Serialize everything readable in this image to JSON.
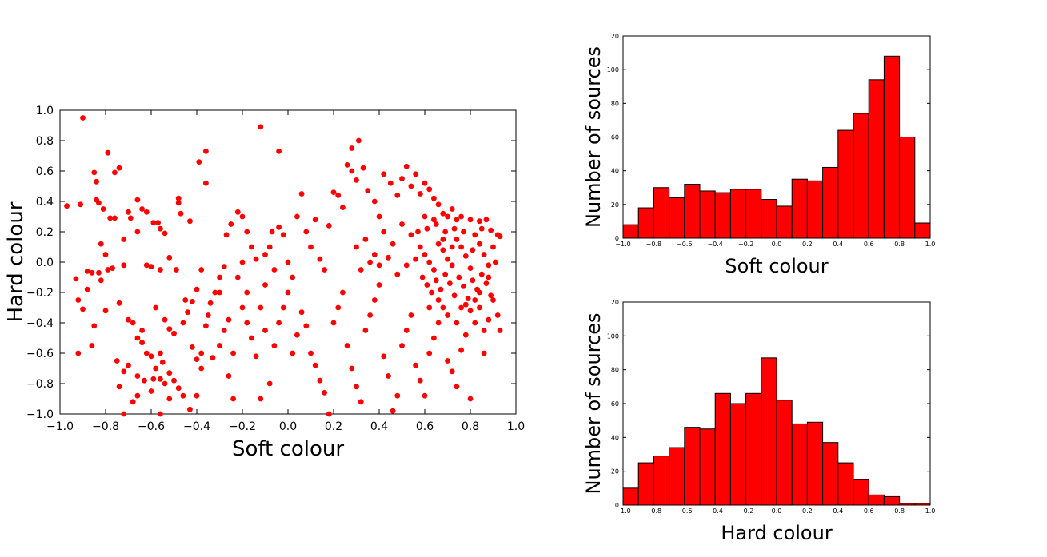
{
  "colors": {
    "marker": "#ff0000",
    "bar_fill": "#ff0000",
    "bar_edge": "#000000",
    "axis": "#000000",
    "background": "#ffffff"
  },
  "chart_data": [
    {
      "type": "scatter",
      "xlabel": "Soft colour",
      "ylabel": "Hard colour",
      "xlim": [
        -1.0,
        1.0
      ],
      "ylim": [
        -1.0,
        1.0
      ],
      "x_ticks": [
        "−1.0",
        "−0.8",
        "−0.6",
        "−0.4",
        "−0.2",
        "0.0",
        "0.2",
        "0.4",
        "0.6",
        "0.8",
        "1.0"
      ],
      "y_ticks": [
        "−1.0",
        "−0.8",
        "−0.6",
        "−0.4",
        "−0.2",
        "0.0",
        "0.2",
        "0.4",
        "0.6",
        "0.8",
        "1.0"
      ],
      "grid": false,
      "points": [
        [
          -0.9,
          0.95
        ],
        [
          -0.12,
          0.89
        ],
        [
          -0.79,
          0.72
        ],
        [
          -0.36,
          0.73
        ],
        [
          -0.04,
          0.73
        ],
        [
          0.31,
          0.8
        ],
        [
          0.28,
          0.75
        ],
        [
          -0.76,
          0.59
        ],
        [
          -0.74,
          0.62
        ],
        [
          -0.85,
          0.59
        ],
        [
          -0.84,
          0.53
        ],
        [
          -0.39,
          0.66
        ],
        [
          -0.36,
          0.52
        ],
        [
          -0.97,
          0.37
        ],
        [
          -0.91,
          0.38
        ],
        [
          -0.84,
          0.41
        ],
        [
          -0.83,
          0.39
        ],
        [
          -0.81,
          0.35
        ],
        [
          -0.78,
          0.29
        ],
        [
          -0.76,
          0.29
        ],
        [
          -0.7,
          0.33
        ],
        [
          -0.69,
          0.29
        ],
        [
          -0.66,
          0.41
        ],
        [
          -0.64,
          0.35
        ],
        [
          -0.62,
          0.33
        ],
        [
          -0.59,
          0.26
        ],
        [
          -0.57,
          0.26
        ],
        [
          -0.48,
          0.42
        ],
        [
          -0.48,
          0.39
        ],
        [
          -0.47,
          0.32
        ],
        [
          -0.43,
          0.27
        ],
        [
          -0.72,
          0.15
        ],
        [
          -0.66,
          0.2
        ],
        [
          -0.56,
          0.22
        ],
        [
          -0.54,
          0.19
        ],
        [
          -0.82,
          0.12
        ],
        [
          -0.8,
          0.05
        ],
        [
          -0.72,
          -0.02
        ],
        [
          -0.77,
          -0.04
        ],
        [
          -0.79,
          -0.05
        ],
        [
          -0.83,
          -0.07
        ],
        [
          -0.86,
          -0.07
        ],
        [
          -0.88,
          -0.06
        ],
        [
          -0.93,
          -0.11
        ],
        [
          -0.82,
          -0.12
        ],
        [
          -0.62,
          -0.02
        ],
        [
          -0.6,
          -0.03
        ],
        [
          -0.56,
          -0.05
        ],
        [
          -0.52,
          0.03
        ],
        [
          -0.49,
          -0.05
        ],
        [
          -0.92,
          -0.25
        ],
        [
          -0.9,
          -0.31
        ],
        [
          -0.86,
          -0.55
        ],
        [
          -0.92,
          -0.6
        ],
        [
          -0.74,
          -0.27
        ],
        [
          -0.7,
          -0.38
        ],
        [
          -0.68,
          -0.4
        ],
        [
          -0.66,
          -0.5
        ],
        [
          -0.64,
          -0.53
        ],
        [
          -0.62,
          -0.6
        ],
        [
          -0.6,
          -0.62
        ],
        [
          -0.58,
          -0.7
        ],
        [
          -0.54,
          -0.38
        ],
        [
          -0.52,
          -0.44
        ],
        [
          -0.5,
          -0.47
        ],
        [
          -0.56,
          -0.6
        ],
        [
          -0.55,
          -0.66
        ],
        [
          -0.52,
          -0.73
        ],
        [
          -0.5,
          -0.78
        ],
        [
          -0.48,
          -0.83
        ],
        [
          -0.46,
          -0.88
        ],
        [
          -0.75,
          -0.65
        ],
        [
          -0.72,
          -0.72
        ],
        [
          -0.66,
          -0.75
        ],
        [
          -0.63,
          -0.78
        ],
        [
          -0.59,
          -0.77
        ],
        [
          -0.56,
          -0.77
        ],
        [
          -0.54,
          -0.8
        ],
        [
          -0.52,
          -0.9
        ],
        [
          -0.68,
          -0.92
        ],
        [
          -0.72,
          -1.0
        ],
        [
          -0.56,
          -1.0
        ],
        [
          -0.43,
          -0.97
        ],
        [
          -0.38,
          -0.6
        ],
        [
          -0.36,
          -0.42
        ],
        [
          -0.34,
          -0.27
        ],
        [
          -0.32,
          -0.2
        ],
        [
          -0.3,
          -0.1
        ],
        [
          -0.28,
          -0.03
        ],
        [
          -0.27,
          0.18
        ],
        [
          -0.25,
          0.25
        ],
        [
          -0.22,
          0.33
        ],
        [
          -0.2,
          0.3
        ],
        [
          -0.18,
          0.2
        ],
        [
          -0.16,
          0.1
        ],
        [
          -0.14,
          0.02
        ],
        [
          -0.1,
          0.05
        ],
        [
          -0.07,
          0.2
        ],
        [
          -0.04,
          0.23
        ],
        [
          -0.02,
          0.18
        ],
        [
          -0.38,
          -0.05
        ],
        [
          -0.4,
          -0.18
        ],
        [
          -0.42,
          -0.26
        ],
        [
          -0.44,
          -0.33
        ],
        [
          -0.46,
          -0.4
        ],
        [
          -0.42,
          -0.56
        ],
        [
          -0.4,
          -0.64
        ],
        [
          -0.38,
          -0.7
        ],
        [
          -0.4,
          -0.88
        ],
        [
          -0.33,
          -0.63
        ],
        [
          -0.3,
          -0.55
        ],
        [
          -0.28,
          -0.45
        ],
        [
          -0.26,
          -0.38
        ],
        [
          -0.24,
          -0.6
        ],
        [
          -0.26,
          -0.75
        ],
        [
          -0.24,
          -0.9
        ],
        [
          -0.2,
          -0.3
        ],
        [
          -0.18,
          -0.4
        ],
        [
          -0.16,
          -0.5
        ],
        [
          -0.14,
          -0.62
        ],
        [
          -0.12,
          -0.3
        ],
        [
          -0.1,
          -0.45
        ],
        [
          -0.08,
          -0.8
        ],
        [
          -0.12,
          -0.9
        ],
        [
          -0.06,
          -0.55
        ],
        [
          -0.04,
          -0.4
        ],
        [
          -0.02,
          -0.3
        ],
        [
          0.0,
          -0.2
        ],
        [
          0.02,
          -0.1
        ],
        [
          0.04,
          0.3
        ],
        [
          0.06,
          0.45
        ],
        [
          0.08,
          0.2
        ],
        [
          0.1,
          0.1
        ],
        [
          0.12,
          0.28
        ],
        [
          0.14,
          0.02
        ],
        [
          0.16,
          -0.05
        ],
        [
          0.18,
          0.24
        ],
        [
          0.2,
          0.46
        ],
        [
          0.22,
          0.44
        ],
        [
          0.24,
          0.36
        ],
        [
          0.26,
          0.64
        ],
        [
          0.28,
          0.6
        ],
        [
          0.3,
          0.54
        ],
        [
          0.33,
          0.62
        ],
        [
          0.35,
          0.47
        ],
        [
          0.38,
          0.4
        ],
        [
          0.4,
          0.3
        ],
        [
          0.42,
          0.58
        ],
        [
          0.45,
          0.52
        ],
        [
          0.48,
          0.44
        ],
        [
          0.5,
          0.55
        ],
        [
          0.52,
          0.63
        ],
        [
          0.54,
          0.5
        ],
        [
          0.56,
          0.58
        ],
        [
          0.58,
          0.45
        ],
        [
          0.6,
          0.52
        ],
        [
          0.62,
          0.48
        ],
        [
          0.64,
          0.42
        ],
        [
          0.66,
          0.38
        ],
        [
          0.68,
          0.32
        ],
        [
          0.7,
          0.3
        ],
        [
          0.72,
          0.35
        ],
        [
          0.74,
          0.28
        ],
        [
          0.76,
          0.3
        ],
        [
          0.8,
          0.28
        ],
        [
          0.84,
          0.27
        ],
        [
          0.87,
          0.28
        ],
        [
          0.89,
          0.21
        ],
        [
          0.92,
          0.18
        ],
        [
          0.93,
          0.17
        ],
        [
          0.02,
          -0.6
        ],
        [
          0.04,
          -0.48
        ],
        [
          0.06,
          -0.33
        ],
        [
          0.08,
          -0.42
        ],
        [
          0.1,
          -0.6
        ],
        [
          0.12,
          -0.68
        ],
        [
          0.14,
          -0.78
        ],
        [
          0.16,
          -0.86
        ],
        [
          0.18,
          -1.0
        ],
        [
          0.2,
          -0.4
        ],
        [
          0.22,
          -0.3
        ],
        [
          0.24,
          -0.2
        ],
        [
          0.26,
          -0.55
        ],
        [
          0.28,
          -0.7
        ],
        [
          0.3,
          -0.82
        ],
        [
          0.32,
          -0.92
        ],
        [
          0.34,
          -0.45
        ],
        [
          0.36,
          -0.35
        ],
        [
          0.38,
          -0.25
        ],
        [
          0.4,
          -0.15
        ],
        [
          0.42,
          -0.62
        ],
        [
          0.44,
          -0.75
        ],
        [
          0.46,
          -0.98
        ],
        [
          0.48,
          -0.88
        ],
        [
          0.5,
          -0.55
        ],
        [
          0.52,
          -0.45
        ],
        [
          0.54,
          -0.35
        ],
        [
          0.56,
          -0.68
        ],
        [
          0.58,
          -0.78
        ],
        [
          0.6,
          -0.88
        ],
        [
          0.62,
          -0.6
        ],
        [
          0.64,
          -0.5
        ],
        [
          0.66,
          -0.4
        ],
        [
          0.68,
          -0.3
        ],
        [
          0.7,
          -0.65
        ],
        [
          0.72,
          -0.72
        ],
        [
          0.74,
          -0.82
        ],
        [
          0.76,
          -0.58
        ],
        [
          0.78,
          -0.48
        ],
        [
          0.8,
          -0.9
        ],
        [
          0.82,
          -0.4
        ],
        [
          0.84,
          -0.3
        ],
        [
          0.86,
          -0.6
        ],
        [
          0.88,
          -0.38
        ],
        [
          0.9,
          -0.25
        ],
        [
          0.92,
          -0.35
        ],
        [
          0.93,
          -0.45
        ],
        [
          0.58,
          0.1
        ],
        [
          0.6,
          0.05
        ],
        [
          0.62,
          0.0
        ],
        [
          0.64,
          -0.05
        ],
        [
          0.66,
          0.12
        ],
        [
          0.68,
          0.08
        ],
        [
          0.7,
          0.02
        ],
        [
          0.72,
          -0.02
        ],
        [
          0.74,
          0.15
        ],
        [
          0.76,
          0.1
        ],
        [
          0.78,
          0.04
        ],
        [
          0.8,
          -0.04
        ],
        [
          0.82,
          0.18
        ],
        [
          0.84,
          0.12
        ],
        [
          0.86,
          0.05
        ],
        [
          0.88,
          -0.02
        ],
        [
          0.9,
          0.1
        ],
        [
          0.59,
          -0.1
        ],
        [
          0.61,
          -0.15
        ],
        [
          0.63,
          -0.2
        ],
        [
          0.65,
          -0.12
        ],
        [
          0.67,
          -0.18
        ],
        [
          0.69,
          -0.08
        ],
        [
          0.71,
          -0.14
        ],
        [
          0.73,
          -0.22
        ],
        [
          0.75,
          -0.1
        ],
        [
          0.77,
          -0.16
        ],
        [
          0.79,
          -0.24
        ],
        [
          0.81,
          -0.12
        ],
        [
          0.83,
          -0.18
        ],
        [
          0.85,
          -0.08
        ],
        [
          0.87,
          -0.14
        ],
        [
          0.89,
          -0.22
        ],
        [
          0.57,
          0.2
        ],
        [
          0.61,
          0.22
        ],
        [
          0.65,
          0.25
        ],
        [
          0.69,
          0.2
        ],
        [
          0.73,
          0.22
        ],
        [
          0.77,
          0.2
        ],
        [
          0.81,
          0.08
        ],
        [
          0.85,
          0.22
        ],
        [
          0.6,
          0.3
        ],
        [
          0.64,
          0.28
        ],
        [
          0.68,
          0.15
        ],
        [
          0.72,
          0.1
        ],
        [
          0.76,
          -0.3
        ],
        [
          0.8,
          -0.32
        ],
        [
          0.84,
          -0.2
        ],
        [
          0.88,
          -0.1
        ],
        [
          0.91,
          0.0
        ],
        [
          0.62,
          -0.3
        ],
        [
          0.66,
          -0.25
        ],
        [
          0.7,
          -0.35
        ],
        [
          0.74,
          -0.4
        ],
        [
          0.78,
          -0.28
        ],
        [
          0.82,
          -0.25
        ],
        [
          0.86,
          -0.45
        ],
        [
          0.3,
          0.1
        ],
        [
          0.34,
          0.15
        ],
        [
          0.38,
          0.05
        ],
        [
          0.42,
          0.2
        ],
        [
          0.46,
          0.12
        ],
        [
          0.5,
          0.25
        ],
        [
          0.54,
          0.18
        ],
        [
          0.32,
          -0.05
        ],
        [
          0.36,
          0.0
        ],
        [
          0.4,
          -0.02
        ],
        [
          0.44,
          0.03
        ],
        [
          0.48,
          -0.08
        ],
        [
          0.52,
          -0.02
        ],
        [
          0.56,
          0.02
        ],
        [
          -0.6,
          -0.85
        ],
        [
          -0.7,
          -0.68
        ],
        [
          -0.64,
          -0.45
        ],
        [
          -0.58,
          -0.3
        ],
        [
          -0.45,
          -0.25
        ],
        [
          -0.35,
          -0.35
        ],
        [
          -0.3,
          -0.2
        ],
        [
          -0.22,
          -0.1
        ],
        [
          -0.2,
          0.0
        ],
        [
          -0.18,
          -0.2
        ],
        [
          -0.1,
          -0.15
        ],
        [
          -0.06,
          -0.05
        ],
        [
          -0.08,
          0.1
        ],
        [
          0.0,
          0.0
        ],
        [
          -0.8,
          -0.32
        ],
        [
          -0.88,
          -0.18
        ],
        [
          -0.85,
          -0.42
        ],
        [
          -0.74,
          -0.82
        ],
        [
          -0.66,
          -0.88
        ]
      ]
    },
    {
      "type": "bar",
      "xlabel": "Soft colour",
      "ylabel": "Number of sources",
      "xlim": [
        -1.0,
        1.0
      ],
      "ylim": [
        0,
        120
      ],
      "x_ticks": [
        "−1.0",
        "−0.8",
        "−0.6",
        "−0.4",
        "−0.2",
        "0.0",
        "0.2",
        "0.4",
        "0.6",
        "0.8",
        "1.0"
      ],
      "y_ticks": [
        "0",
        "20",
        "40",
        "60",
        "80",
        "100",
        "120"
      ],
      "bin_edges_start": -1.0,
      "bin_width": 0.1,
      "values": [
        8,
        18,
        30,
        24,
        32,
        28,
        27,
        29,
        29,
        23,
        19,
        35,
        34,
        42,
        64,
        74,
        94,
        108,
        60,
        9
      ]
    },
    {
      "type": "bar",
      "xlabel": "Hard colour",
      "ylabel": "Number of sources",
      "xlim": [
        -1.0,
        1.0
      ],
      "ylim": [
        0,
        120
      ],
      "x_ticks": [
        "−1.0",
        "−0.8",
        "−0.6",
        "−0.4",
        "−0.2",
        "0.0",
        "0.2",
        "0.4",
        "0.6",
        "0.8",
        "1.0"
      ],
      "y_ticks": [
        "0",
        "20",
        "40",
        "60",
        "80",
        "100",
        "120"
      ],
      "bin_edges_start": -1.0,
      "bin_width": 0.1,
      "values": [
        10,
        25,
        29,
        34,
        46,
        45,
        66,
        60,
        66,
        87,
        62,
        48,
        49,
        37,
        25,
        15,
        6,
        5,
        1,
        1
      ]
    }
  ]
}
